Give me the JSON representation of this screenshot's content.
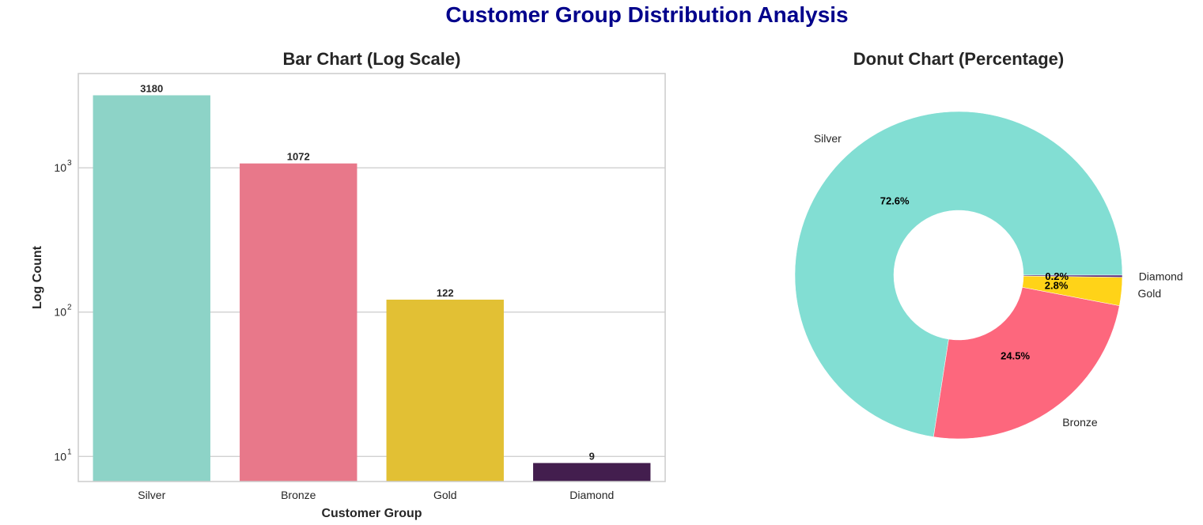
{
  "figure": {
    "suptitle": "Customer Group Distribution Analysis"
  },
  "chart_data": [
    {
      "type": "bar",
      "title": "Bar Chart (Log Scale)",
      "xlabel": "Customer Group",
      "ylabel": "Log Count",
      "yscale": "log",
      "ylim": [
        6.7,
        4500
      ],
      "yticks": [
        {
          "value": 10,
          "base": "10",
          "exp": "1"
        },
        {
          "value": 100,
          "base": "10",
          "exp": "2"
        },
        {
          "value": 1000,
          "base": "10",
          "exp": "3"
        }
      ],
      "grid": "horizontal",
      "categories": [
        "Silver",
        "Bronze",
        "Gold",
        "Diamond"
      ],
      "values": [
        3180,
        1072,
        122,
        9
      ],
      "data_labels": [
        "3180",
        "1072",
        "122",
        "9"
      ],
      "colors": [
        "#8dd3c7",
        "#e8788a",
        "#e2c034",
        "#431e4e"
      ]
    },
    {
      "type": "pie",
      "subtype": "donut",
      "title": "Donut Chart (Percentage)",
      "categories": [
        "Silver",
        "Bronze",
        "Gold",
        "Diamond"
      ],
      "values": [
        3180,
        1072,
        122,
        9
      ],
      "percent_labels": [
        "72.6%",
        "24.5%",
        "2.8%",
        "0.2%"
      ],
      "colors": [
        "#82ded3",
        "#fd677d",
        "#ffd318",
        "#5b2a78"
      ],
      "startangle": 0,
      "direction": "counterclockwise"
    }
  ]
}
